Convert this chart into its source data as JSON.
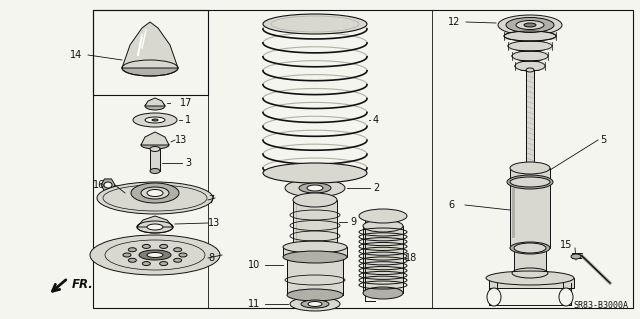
{
  "bg_color": "#f5f5f0",
  "line_color": "#111111",
  "fill_light": "#d8d8d0",
  "fill_mid": "#b0b0a8",
  "fill_dark": "#808078",
  "fill_white": "#f5f5f0",
  "watermark": "SR83-B3000A",
  "fr_label": "FR.",
  "border_lw": 0.8,
  "label_fs": 7.0
}
